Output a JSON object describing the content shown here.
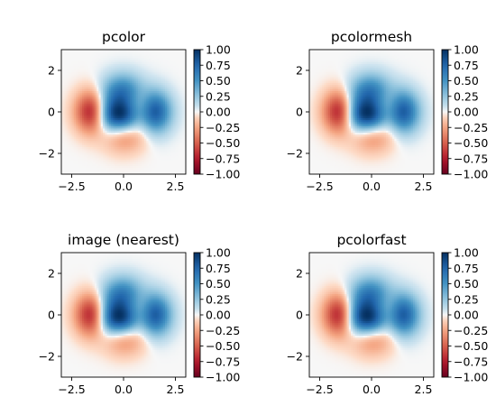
{
  "colors": {
    "positive": "#053061",
    "zero": "#f7f7f7",
    "negative": "#67001f",
    "colormap": "RdBu"
  },
  "chart_data": [
    {
      "type": "heatmap",
      "title": "pcolor",
      "xlim": [
        -3,
        3
      ],
      "ylim": [
        -3,
        3
      ],
      "xticks": [
        -2.5,
        0.0,
        2.5
      ],
      "xtick_labels": [
        "−2.5",
        "0.0",
        "2.5"
      ],
      "yticks": [
        -2,
        0,
        2
      ],
      "ytick_labels": [
        "−2",
        "0",
        "2"
      ],
      "colorbar": {
        "range": [
          -1,
          1
        ],
        "ticks": [
          1,
          0.75,
          0.5,
          0.25,
          0,
          -0.25,
          -0.5,
          -0.75,
          -1
        ],
        "tick_labels": [
          "1.00",
          "0.75",
          "0.50",
          "0.25",
          "0.00",
          "−0.25",
          "−0.50",
          "−0.75",
          "−1.00"
        ]
      },
      "grid": false
    },
    {
      "type": "heatmap",
      "title": "pcolormesh",
      "xlim": [
        -3,
        3
      ],
      "ylim": [
        -3,
        3
      ],
      "xticks": [
        -2.5,
        0.0,
        2.5
      ],
      "xtick_labels": [
        "−2.5",
        "0.0",
        "2.5"
      ],
      "yticks": [
        -2,
        0,
        2
      ],
      "ytick_labels": [
        "−2",
        "0",
        "2"
      ],
      "colorbar": {
        "range": [
          -1,
          1
        ],
        "ticks": [
          1,
          0.75,
          0.5,
          0.25,
          0,
          -0.25,
          -0.5,
          -0.75,
          -1
        ],
        "tick_labels": [
          "1.00",
          "0.75",
          "0.50",
          "0.25",
          "0.00",
          "−0.25",
          "−0.50",
          "−0.75",
          "−1.00"
        ]
      },
      "grid": false
    },
    {
      "type": "heatmap",
      "title": "image (nearest)",
      "xlim": [
        -3,
        3
      ],
      "ylim": [
        -3,
        3
      ],
      "xticks": [
        -2.5,
        0.0,
        2.5
      ],
      "xtick_labels": [
        "−2.5",
        "0.0",
        "2.5"
      ],
      "yticks": [
        -2,
        0,
        2
      ],
      "ytick_labels": [
        "−2",
        "0",
        "2"
      ],
      "colorbar": {
        "range": [
          -1,
          1
        ],
        "ticks": [
          1,
          0.75,
          0.5,
          0.25,
          0,
          -0.25,
          -0.5,
          -0.75,
          -1
        ],
        "tick_labels": [
          "1.00",
          "0.75",
          "0.50",
          "0.25",
          "0.00",
          "−0.25",
          "−0.50",
          "−0.75",
          "−1.00"
        ]
      },
      "grid": false
    },
    {
      "type": "heatmap",
      "title": "pcolorfast",
      "xlim": [
        -3,
        3
      ],
      "ylim": [
        -3,
        3
      ],
      "xticks": [
        -2.5,
        0.0,
        2.5
      ],
      "xtick_labels": [
        "−2.5",
        "0.0",
        "2.5"
      ],
      "yticks": [
        -2,
        0,
        2
      ],
      "ytick_labels": [
        "−2",
        "0",
        "2"
      ],
      "colorbar": {
        "range": [
          -1,
          1
        ],
        "ticks": [
          1,
          0.75,
          0.5,
          0.25,
          0,
          -0.25,
          -0.5,
          -0.75,
          -1
        ],
        "tick_labels": [
          "1.00",
          "0.75",
          "0.50",
          "0.25",
          "0.00",
          "−0.25",
          "−0.50",
          "−0.75",
          "−1.00"
        ]
      },
      "grid": false
    }
  ]
}
